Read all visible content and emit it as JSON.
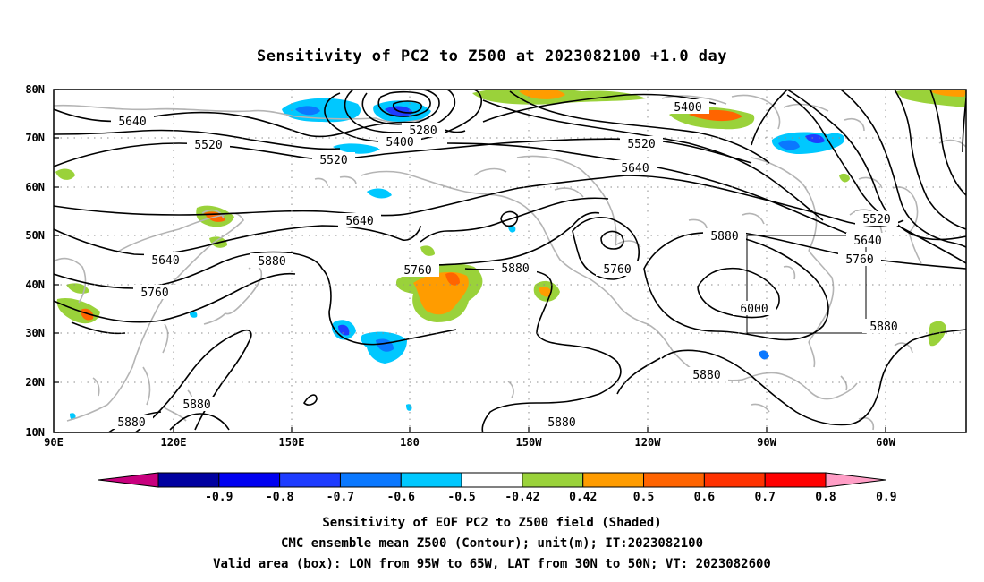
{
  "title": "Sensitivity of PC2 to Z500 at 2023082100 +1.0 day",
  "lat_labels": [
    "80N",
    "70N",
    "60N",
    "50N",
    "40N",
    "30N",
    "20N",
    "10N"
  ],
  "lon_labels": [
    "90E",
    "120E",
    "150E",
    "180",
    "150W",
    "120W",
    "90W",
    "60W"
  ],
  "contour_labels": [
    "5640",
    "5520",
    "5520",
    "5280",
    "5400",
    "5400",
    "5520",
    "5640",
    "5640",
    "5640",
    "5760",
    "5880",
    "5760",
    "5880",
    "5760",
    "5880",
    "6000",
    "5520",
    "5640",
    "5760",
    "5880",
    "5880",
    "5880",
    "5880",
    "5880"
  ],
  "colorbar": {
    "ticks": [
      "-0.9",
      "-0.8",
      "-0.7",
      "-0.6",
      "-0.5",
      "-0.42",
      "0.42",
      "0.5",
      "0.6",
      "0.7",
      "0.8",
      "0.9"
    ],
    "colors": [
      "#c8007e",
      "#0000a0",
      "#0000f0",
      "#1e3cff",
      "#0a78ff",
      "#00c8ff",
      "#ffffff",
      "#9ad23a",
      "#ff9c00",
      "#ff6400",
      "#ff3200",
      "#ff0000",
      "#ff9ec6"
    ]
  },
  "valid_box": {
    "lon_from": "95W",
    "lon_to": "65W",
    "lat_from": "30N",
    "lat_to": "50N"
  },
  "caption": {
    "line1": "Sensitivity of EOF PC2 to Z500 field (Shaded)",
    "line2": "CMC ensemble mean Z500 (Contour); unit(m); IT:2023082100",
    "line3": "Valid area (box): LON from 95W to 65W, LAT from 30N to 50N; VT: 2023082600"
  }
}
